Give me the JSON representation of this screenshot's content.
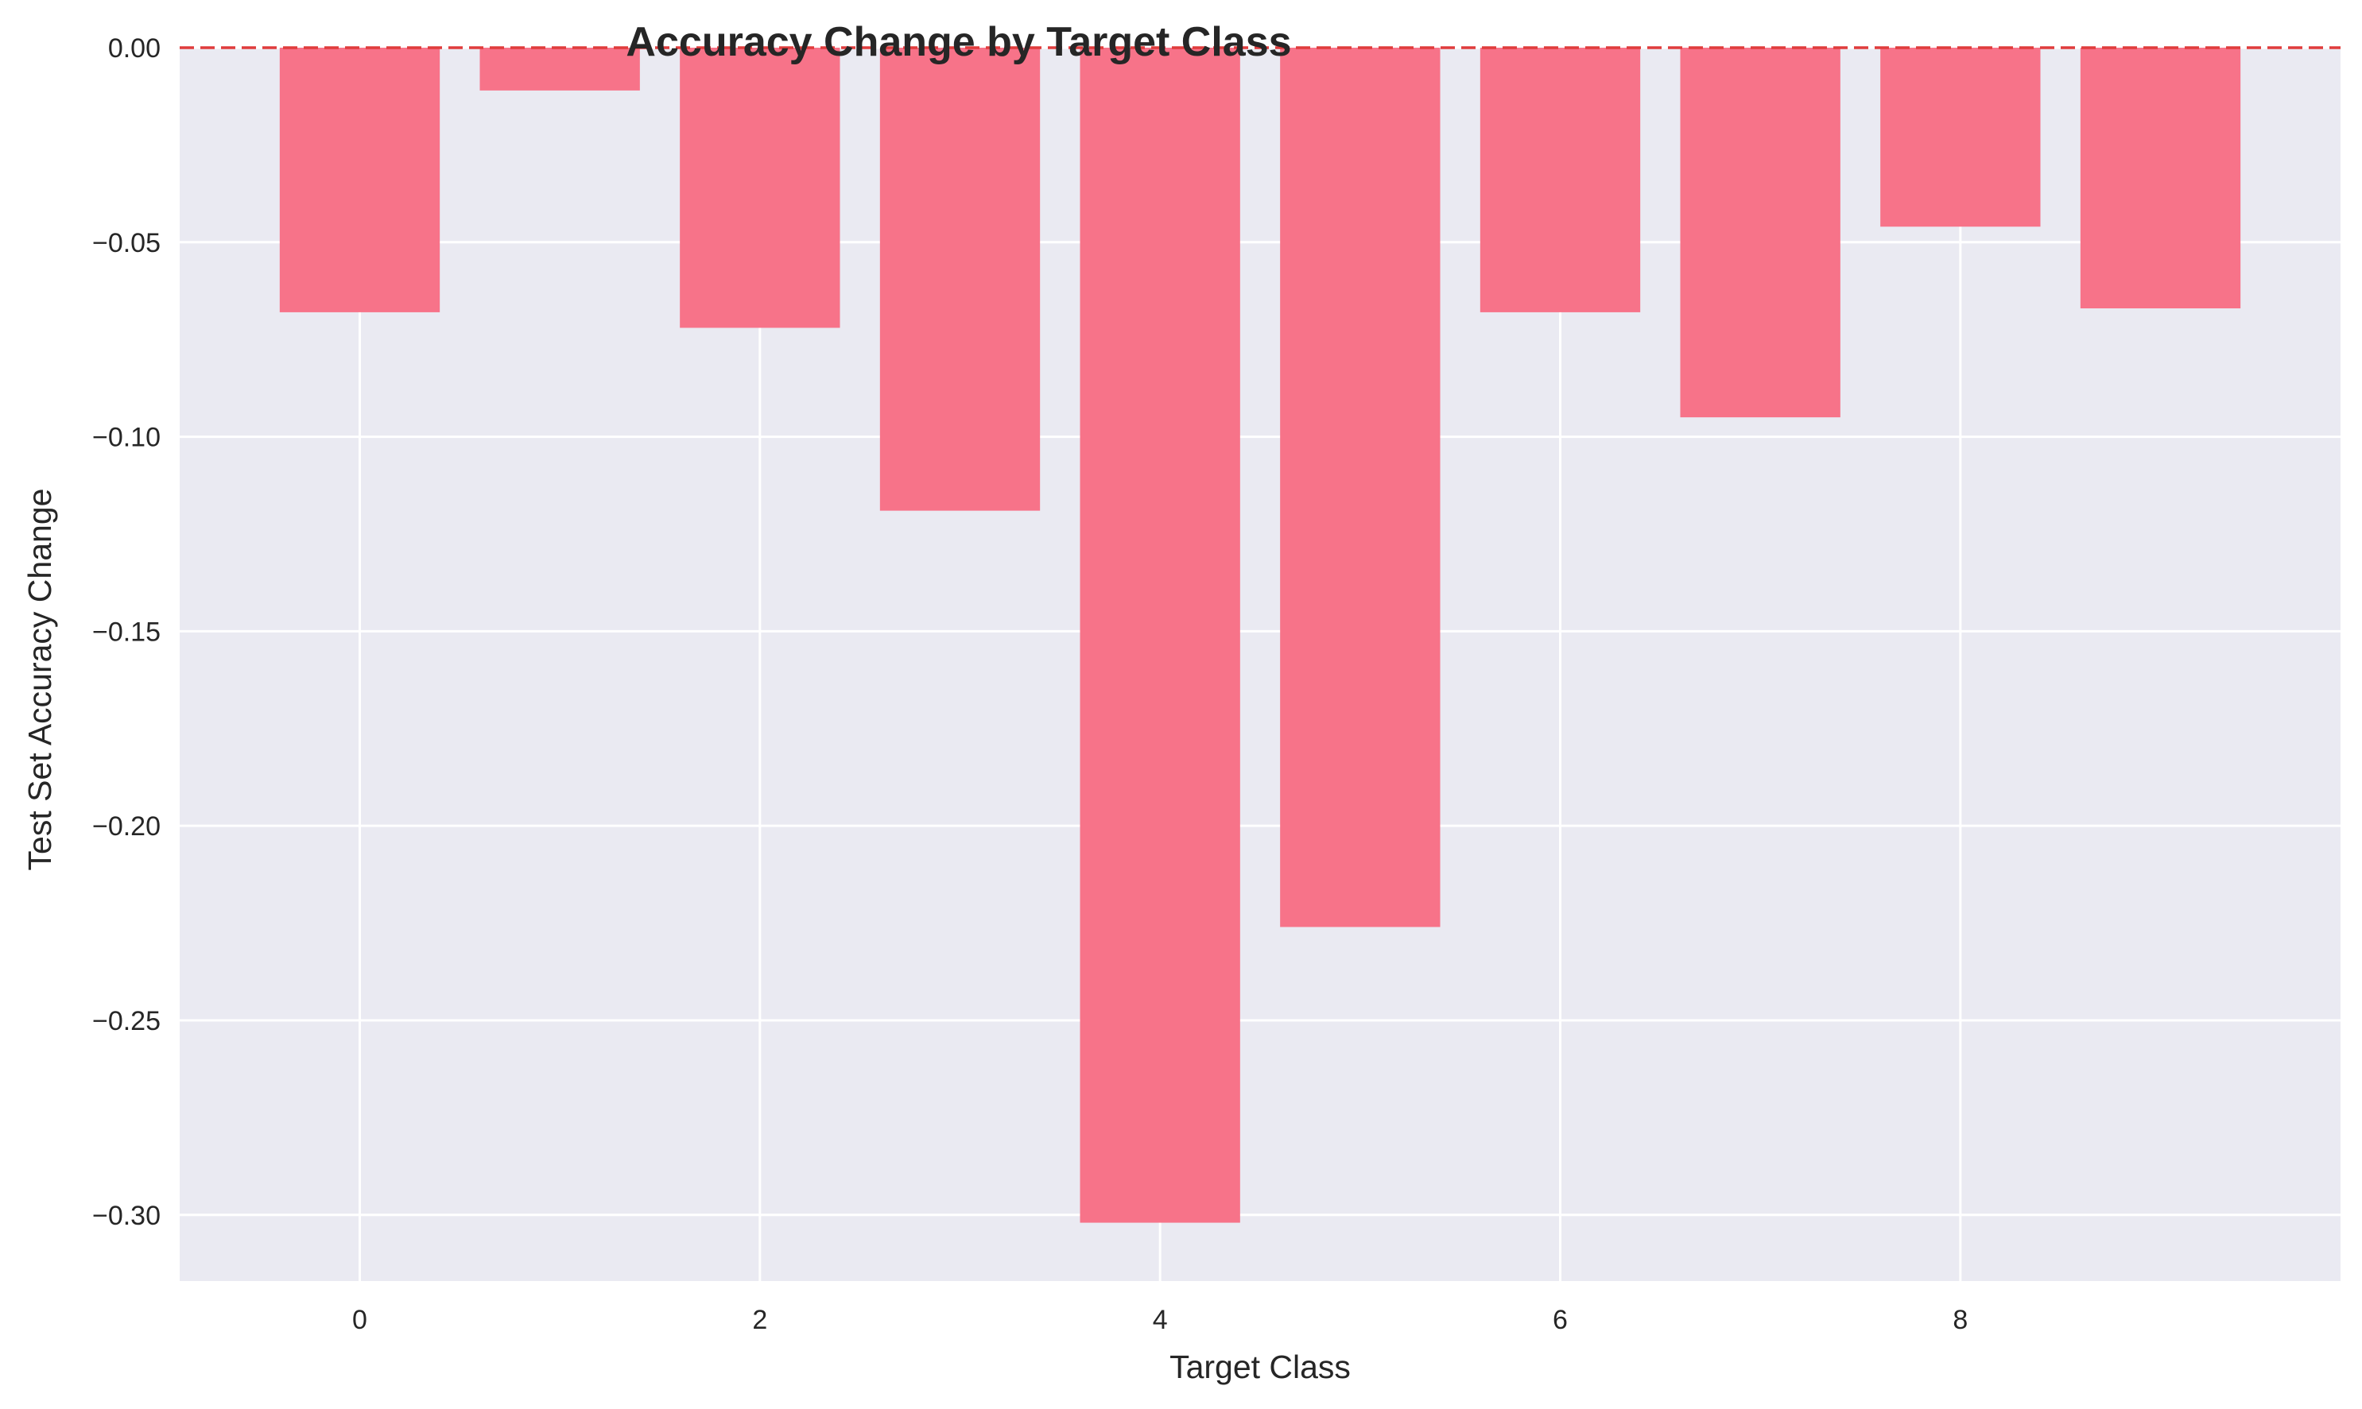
{
  "chart_data": {
    "type": "bar",
    "title": "Accuracy Change by Target Class",
    "xlabel": "Target Class",
    "ylabel": "Test Set Accuracy Change",
    "categories": [
      0,
      1,
      2,
      3,
      4,
      5,
      6,
      7,
      8,
      9
    ],
    "values": [
      -0.068,
      -0.011,
      -0.072,
      -0.119,
      -0.302,
      -0.226,
      -0.068,
      -0.095,
      -0.046,
      -0.067
    ],
    "xlim": [
      -0.9,
      9.9
    ],
    "ylim": [
      -0.317,
      0.0
    ],
    "x_ticks": [
      0,
      2,
      4,
      6,
      8
    ],
    "x_tick_labels": [
      "0",
      "2",
      "4",
      "6",
      "8"
    ],
    "y_ticks": [
      0.0,
      -0.05,
      -0.1,
      -0.15,
      -0.2,
      -0.25,
      -0.3
    ],
    "y_tick_labels": [
      "0.00",
      "−0.05",
      "−0.10",
      "−0.15",
      "−0.20",
      "−0.25",
      "−0.30"
    ],
    "reference_line": {
      "y": 0.0,
      "style": "dashed",
      "color": "#e03c3c"
    },
    "grid": true,
    "legend": "none",
    "colors": {
      "bar": "#f77389",
      "plot_background": "#eaeaf2",
      "grid": "#ffffff",
      "text": "#262626"
    }
  }
}
